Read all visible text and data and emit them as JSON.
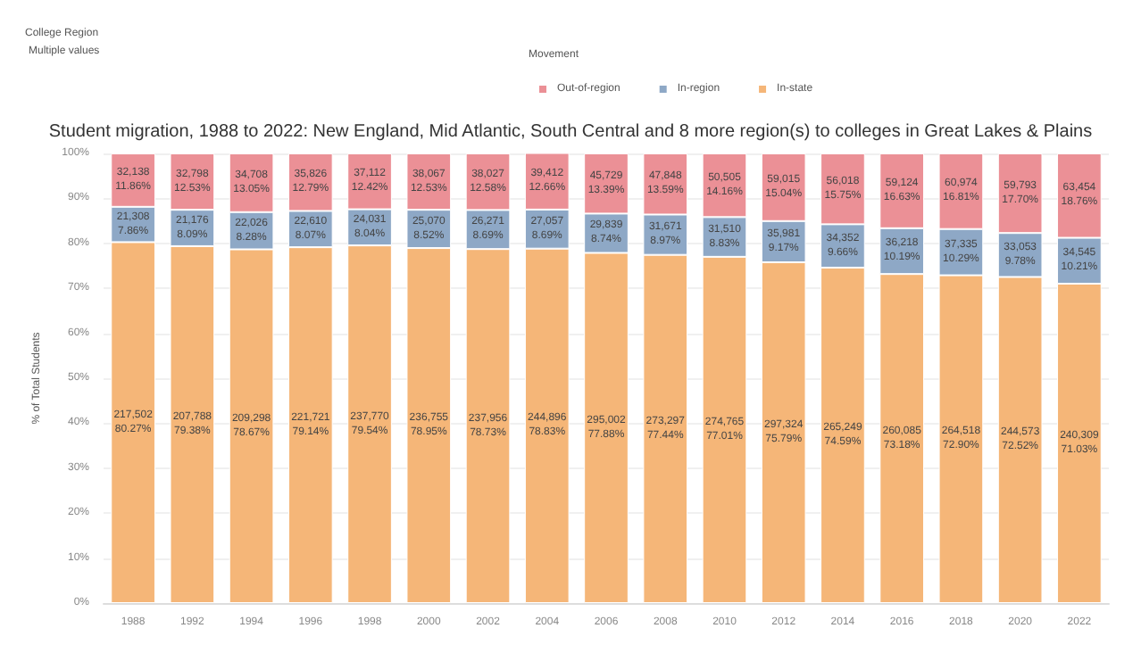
{
  "chart_data": {
    "type": "bar",
    "title": "Student migration, 1988 to 2022: New England, Mid Atlantic, South Central and 8 more region(s) to colleges in Great Lakes & Plains",
    "ylabel": "% of Total Students",
    "legend_title": "Movement",
    "annotations": [
      "College Region",
      "Multiple values"
    ],
    "categories": [
      "1988",
      "1992",
      "1994",
      "1996",
      "1998",
      "2000",
      "2002",
      "2004",
      "2006",
      "2008",
      "2010",
      "2012",
      "2014",
      "2016",
      "2018",
      "2020",
      "2022"
    ],
    "stacked": true,
    "legend": "top",
    "grid": "y",
    "ylim": [
      0,
      100
    ],
    "yticks": [
      {
        "value": 0,
        "label": "0%"
      },
      {
        "value": 10,
        "label": "10%"
      },
      {
        "value": 20,
        "label": "20%"
      },
      {
        "value": 30,
        "label": "30%"
      },
      {
        "value": 40,
        "label": "40%"
      },
      {
        "value": 50,
        "label": "50%"
      },
      {
        "value": 60,
        "label": "60%"
      },
      {
        "value": 70,
        "label": "70%"
      },
      {
        "value": 80,
        "label": "80%"
      },
      {
        "value": 90,
        "label": "90%"
      },
      {
        "value": 100,
        "label": "100%"
      }
    ],
    "series": [
      {
        "name": "In-state",
        "color": "#f5b678",
        "values": [
          80.27,
          79.38,
          78.67,
          79.14,
          79.54,
          78.95,
          78.73,
          78.83,
          77.88,
          77.44,
          77.01,
          75.79,
          74.59,
          73.18,
          72.9,
          72.52,
          71.03
        ],
        "value_labels": [
          "217,502\n80.27%",
          "207,788\n79.38%",
          "209,298\n78.67%",
          "221,721\n79.14%",
          "237,770\n79.54%",
          "236,755\n78.95%",
          "237,956\n78.73%",
          "244,896\n78.83%",
          "295,002\n77.88%",
          "273,297\n77.44%",
          "274,765\n77.01%",
          "297,324\n75.79%",
          "265,249\n74.59%",
          "260,085\n73.18%",
          "264,518\n72.90%",
          "244,573\n72.52%",
          "240,309\n71.03%"
        ]
      },
      {
        "name": "In-region",
        "color": "#8ea8c6",
        "values": [
          7.86,
          8.09,
          8.28,
          8.07,
          8.04,
          8.52,
          8.69,
          8.69,
          8.74,
          8.97,
          8.83,
          9.17,
          9.66,
          10.19,
          10.29,
          9.78,
          10.21
        ],
        "value_labels": [
          "21,308\n7.86%",
          "21,176\n8.09%",
          "22,026\n8.28%",
          "22,610\n8.07%",
          "24,031\n8.04%",
          "25,070\n8.52%",
          "26,271\n8.69%",
          "27,057\n8.69%",
          "29,839\n8.74%",
          "31,671\n8.97%",
          "31,510\n8.83%",
          "35,981\n9.17%",
          "34,352\n9.66%",
          "36,218\n10.19%",
          "37,335\n10.29%",
          "33,053\n9.78%",
          "34,545\n10.21%"
        ]
      },
      {
        "name": "Out-of-region",
        "color": "#eb9096",
        "values": [
          11.86,
          12.53,
          13.05,
          12.79,
          12.42,
          12.53,
          12.58,
          12.66,
          13.39,
          13.59,
          14.16,
          15.04,
          15.75,
          16.63,
          16.81,
          17.7,
          18.76
        ],
        "value_labels": [
          "32,138\n11.86%",
          "32,798\n12.53%",
          "34,708\n13.05%",
          "35,826\n12.79%",
          "37,112\n12.42%",
          "38,067\n12.53%",
          "38,027\n12.58%",
          "39,412\n12.66%",
          "45,729\n13.39%",
          "47,848\n13.59%",
          "50,505\n14.16%",
          "59,015\n15.04%",
          "56,018\n15.75%",
          "59,124\n16.63%",
          "60,974\n16.81%",
          "59,793\n17.70%",
          "63,454\n18.76%"
        ]
      }
    ]
  }
}
